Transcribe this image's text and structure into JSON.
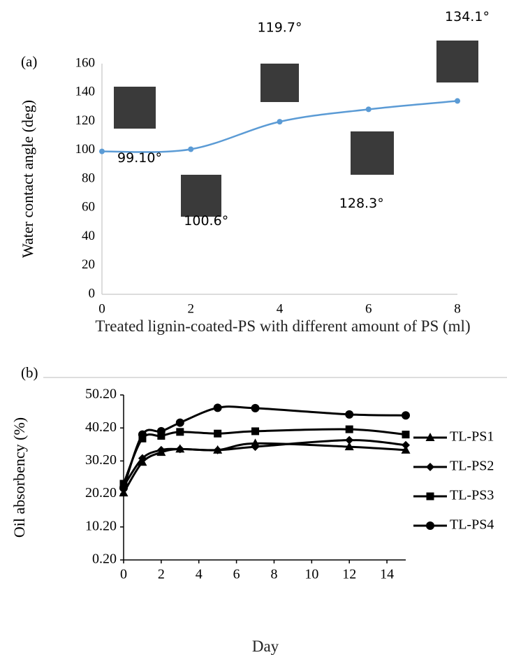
{
  "chart_data": [
    {
      "type": "line",
      "label": "(a)",
      "x": [
        0,
        2,
        4,
        6,
        8
      ],
      "values": [
        99.1,
        100.6,
        119.7,
        128.3,
        134.1
      ],
      "value_labels": [
        "99.10°",
        "100.6°",
        "119.7°",
        "128.3°",
        "134.1°"
      ],
      "color": "#5b9bd5",
      "xlabel": "Treated lignin-coated-PS with different amount of PS (ml)",
      "ylabel": "Water contact angle (deg)",
      "xlim": [
        0,
        8
      ],
      "xticks": [
        0,
        2,
        4,
        6,
        8
      ],
      "ylim": [
        0,
        160
      ],
      "yticks": [
        0,
        20,
        40,
        60,
        80,
        100,
        120,
        140,
        160
      ]
    },
    {
      "type": "line",
      "label": "(b)",
      "x": [
        0,
        1,
        2,
        3,
        5,
        7,
        12,
        15
      ],
      "series": [
        {
          "name": "TL-PS1",
          "color": "#000000",
          "marker": "triangle",
          "values": [
            20.5,
            29.8,
            32.8,
            33.8,
            33.5,
            35.5,
            34.5,
            33.5
          ]
        },
        {
          "name": "TL-PS2",
          "color": "#000000",
          "marker": "diamond",
          "values": [
            22.5,
            31.0,
            33.5,
            33.8,
            33.5,
            34.5,
            36.5,
            35.0
          ]
        },
        {
          "name": "TL-PS3",
          "color": "#000000",
          "marker": "square",
          "values": [
            23.3,
            37.0,
            37.8,
            39.0,
            38.5,
            39.2,
            39.8,
            38.2
          ]
        },
        {
          "name": "TL-PS4",
          "color": "#000000",
          "marker": "circle",
          "values": [
            22.0,
            38.2,
            39.2,
            41.8,
            46.3,
            46.2,
            44.3,
            44.0
          ]
        }
      ],
      "xlabel": "Day",
      "ylabel": "Oil absorbency (%)",
      "xlim": [
        0,
        15
      ],
      "xticks": [
        0,
        2,
        4,
        6,
        8,
        10,
        12,
        14
      ],
      "ylim": [
        0.2,
        50.2
      ],
      "yticks": [
        {
          "value": 0.2,
          "label": "0.20"
        },
        {
          "value": 10.2,
          "label": "10.20"
        },
        {
          "value": 20.2,
          "label": "20.20"
        },
        {
          "value": 30.2,
          "label": "30.20"
        },
        {
          "value": 40.2,
          "label": "40.20"
        },
        {
          "value": 50.2,
          "label": "50.20"
        }
      ],
      "legend": "right"
    }
  ]
}
